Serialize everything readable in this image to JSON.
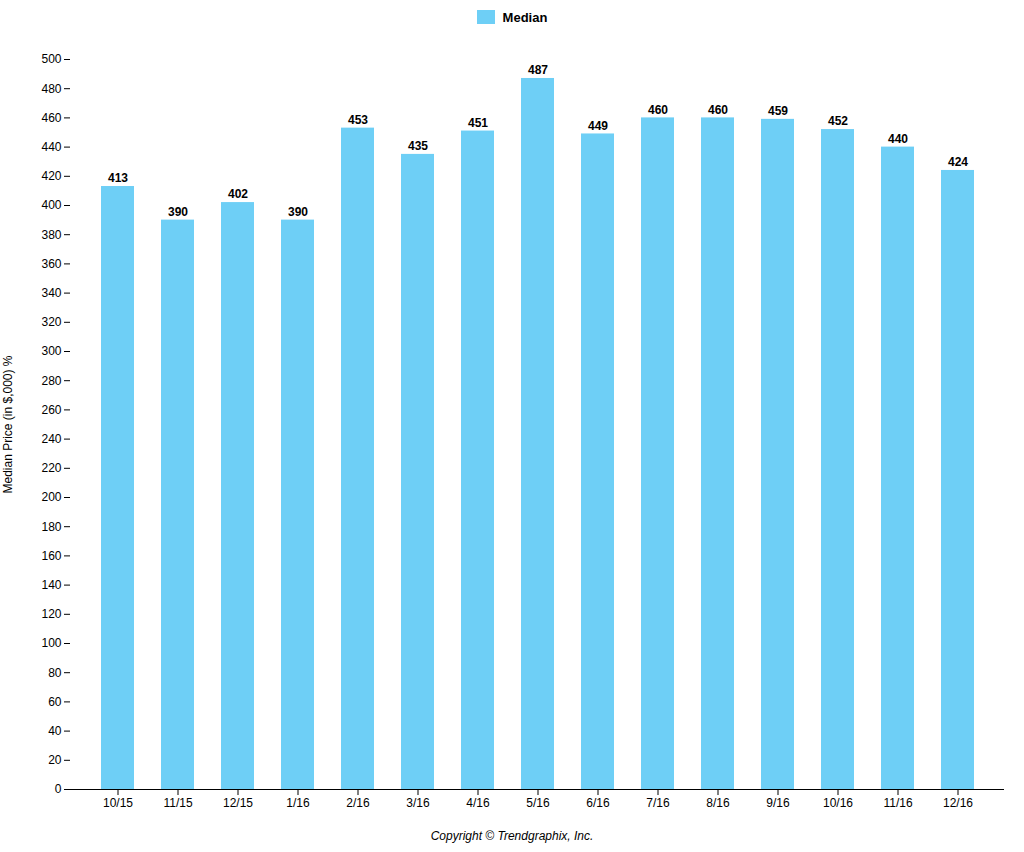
{
  "chart_data": {
    "type": "bar",
    "categories": [
      "10/15",
      "11/15",
      "12/15",
      "1/16",
      "2/16",
      "3/16",
      "4/16",
      "5/16",
      "6/16",
      "7/16",
      "8/16",
      "9/16",
      "10/16",
      "11/16",
      "12/16"
    ],
    "series": [
      {
        "name": "Median",
        "color": "#6ECFF6",
        "values": [
          413,
          390,
          402,
          390,
          453,
          435,
          451,
          487,
          449,
          460,
          460,
          459,
          452,
          440,
          424
        ]
      }
    ],
    "ylabel": "Median Price (in $,000) %",
    "ylim": [
      0,
      500
    ],
    "yticks": [
      0,
      20,
      40,
      60,
      80,
      100,
      120,
      140,
      160,
      180,
      200,
      220,
      240,
      260,
      280,
      300,
      320,
      340,
      360,
      380,
      400,
      420,
      440,
      460,
      480,
      500
    ],
    "grid": false,
    "legend": "top",
    "data_labels": true,
    "annotations": [
      "Copyright © Trendgraphix, Inc."
    ]
  }
}
